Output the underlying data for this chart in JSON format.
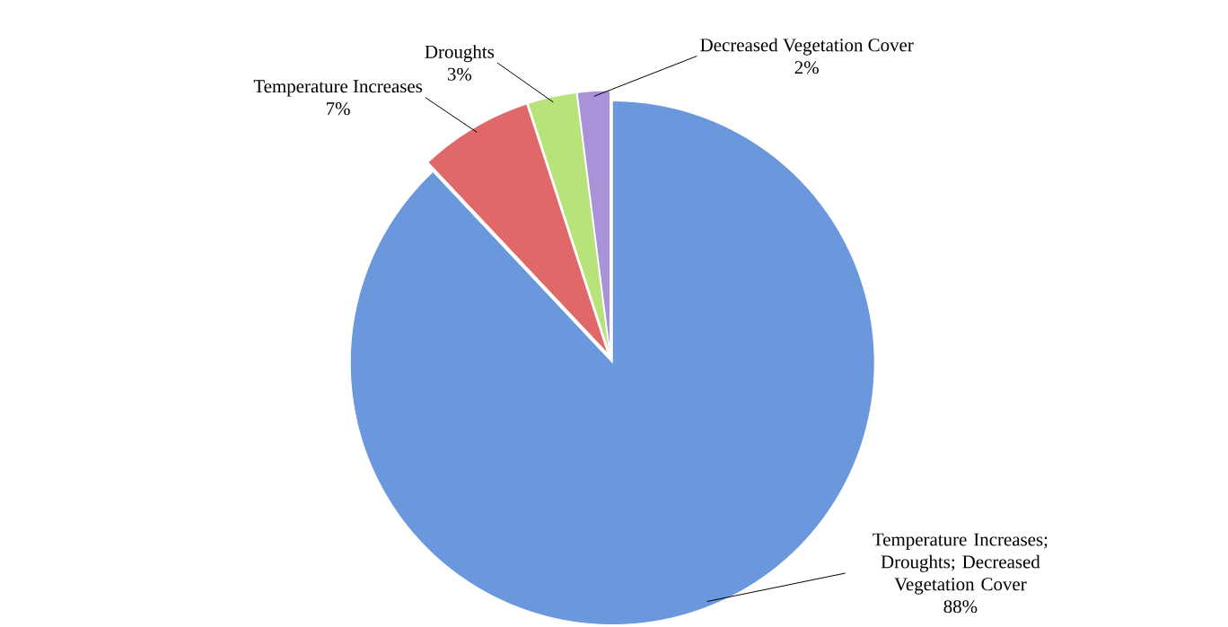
{
  "chart_data": {
    "type": "pie",
    "categories": [
      "Temperature Increases; Droughts; Decreased Vegetation Cover",
      "Temperature Increases",
      "Droughts",
      "Decreased Vegetation Cover"
    ],
    "values": [
      88,
      7,
      3,
      2
    ],
    "value_labels": [
      "88%",
      "7%",
      "3%",
      "2%"
    ],
    "colors": [
      "#6b97dc",
      "#e06868",
      "#b8e27a",
      "#a992d8"
    ]
  }
}
